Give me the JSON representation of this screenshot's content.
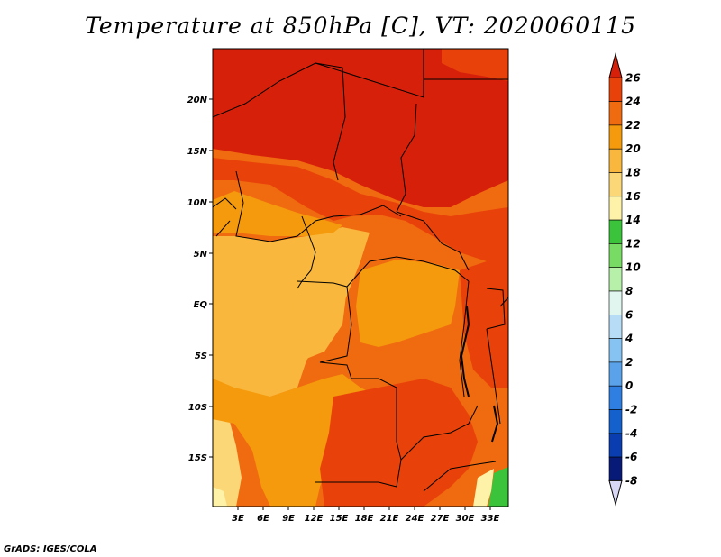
{
  "title": "Temperature at 850hPa [C], VT: 2020060115",
  "credit": "GrADS: IGES/COLA",
  "lat_ticks": [
    "20N",
    "15N",
    "10N",
    "5N",
    "EQ",
    "5S",
    "10S",
    "15S"
  ],
  "lon_ticks": [
    "3E",
    "6E",
    "9E",
    "12E",
    "15E",
    "18E",
    "21E",
    "24E",
    "27E",
    "30E",
    "33E"
  ],
  "colorbar": {
    "labels": [
      "26",
      "24",
      "22",
      "20",
      "18",
      "16",
      "14",
      "12",
      "10",
      "8",
      "6",
      "4",
      "2",
      "0",
      "-2",
      "-4",
      "-6",
      "-8"
    ],
    "colors": [
      "#d7200a",
      "#e8420a",
      "#f06a10",
      "#f59a0c",
      "#f9b83d",
      "#fcd777",
      "#fdf2a8",
      "#3bc43b",
      "#78dc64",
      "#b7f0a8",
      "#e2f6f0",
      "#b6dcf6",
      "#86c2f2",
      "#5aa2ea",
      "#2f7fe2",
      "#1460cc",
      "#0a3eb0",
      "#081a78",
      "#d8d8f6"
    ]
  },
  "map_colors": {
    "c26": "#d7200a",
    "c24": "#e8420a",
    "c22": "#f06a10",
    "c20": "#f59a0c",
    "c18": "#f9b83d",
    "c16": "#fcd777",
    "c14": "#fdf2a8",
    "c12": "#3bc43b"
  }
}
